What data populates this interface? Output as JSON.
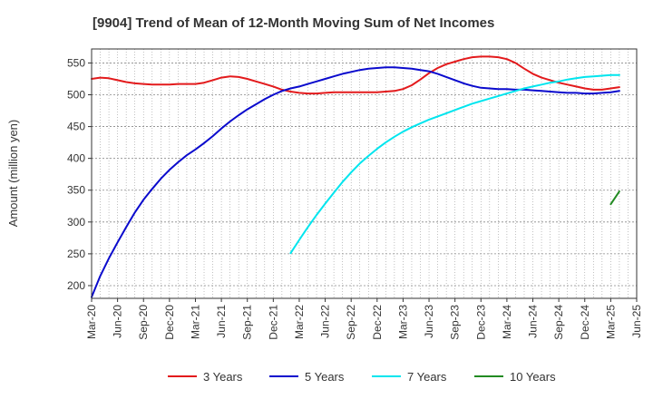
{
  "chart_data": {
    "type": "line",
    "title": "[9904]  Trend of Mean of 12-Month Moving Sum of Net Incomes",
    "ylabel": "Amount (million yen)",
    "xlabel": "",
    "ylim": [
      180,
      572
    ],
    "yticks": [
      200,
      250,
      300,
      350,
      400,
      450,
      500,
      550
    ],
    "xlim": [
      "2020-03",
      "2025-06"
    ],
    "xtick_labels": [
      "Mar-20",
      "Jun-20",
      "Sep-20",
      "Dec-20",
      "Mar-21",
      "Jun-21",
      "Sep-21",
      "Dec-21",
      "Mar-22",
      "Jun-22",
      "Sep-22",
      "Dec-22",
      "Mar-23",
      "Jun-23",
      "Sep-23",
      "Dec-23",
      "Mar-24",
      "Jun-24",
      "Sep-24",
      "Dec-24",
      "Mar-25",
      "Jun-25"
    ],
    "grid": true,
    "legend_position": "bottom",
    "series": [
      {
        "name": "3 Years",
        "color": "#e31a1c",
        "points": [
          [
            "2020-03",
            525
          ],
          [
            "2020-04",
            527
          ],
          [
            "2020-05",
            526
          ],
          [
            "2020-06",
            523
          ],
          [
            "2020-07",
            520
          ],
          [
            "2020-08",
            518
          ],
          [
            "2020-09",
            517
          ],
          [
            "2020-10",
            516
          ],
          [
            "2020-11",
            516
          ],
          [
            "2020-12",
            516
          ],
          [
            "2021-01",
            517
          ],
          [
            "2021-02",
            517
          ],
          [
            "2021-03",
            517
          ],
          [
            "2021-04",
            519
          ],
          [
            "2021-05",
            523
          ],
          [
            "2021-06",
            527
          ],
          [
            "2021-07",
            529
          ],
          [
            "2021-08",
            528
          ],
          [
            "2021-09",
            525
          ],
          [
            "2021-10",
            521
          ],
          [
            "2021-11",
            517
          ],
          [
            "2021-12",
            513
          ],
          [
            "2022-01",
            508
          ],
          [
            "2022-02",
            505
          ],
          [
            "2022-03",
            503
          ],
          [
            "2022-04",
            502
          ],
          [
            "2022-05",
            502
          ],
          [
            "2022-06",
            503
          ],
          [
            "2022-07",
            504
          ],
          [
            "2022-08",
            504
          ],
          [
            "2022-09",
            504
          ],
          [
            "2022-10",
            504
          ],
          [
            "2022-11",
            504
          ],
          [
            "2022-12",
            504
          ],
          [
            "2023-01",
            505
          ],
          [
            "2023-02",
            506
          ],
          [
            "2023-03",
            509
          ],
          [
            "2023-04",
            515
          ],
          [
            "2023-05",
            524
          ],
          [
            "2023-06",
            534
          ],
          [
            "2023-07",
            542
          ],
          [
            "2023-08",
            548
          ],
          [
            "2023-09",
            552
          ],
          [
            "2023-10",
            556
          ],
          [
            "2023-11",
            559
          ],
          [
            "2023-12",
            560
          ],
          [
            "2024-01",
            560
          ],
          [
            "2024-02",
            559
          ],
          [
            "2024-03",
            556
          ],
          [
            "2024-04",
            550
          ],
          [
            "2024-05",
            541
          ],
          [
            "2024-06",
            533
          ],
          [
            "2024-07",
            527
          ],
          [
            "2024-08",
            523
          ],
          [
            "2024-09",
            519
          ],
          [
            "2024-10",
            516
          ],
          [
            "2024-11",
            513
          ],
          [
            "2024-12",
            510
          ],
          [
            "2025-01",
            508
          ],
          [
            "2025-02",
            508
          ],
          [
            "2025-03",
            510
          ],
          [
            "2025-04",
            512
          ]
        ]
      },
      {
        "name": "5 Years",
        "color": "#0a0acd",
        "points": [
          [
            "2020-03",
            182
          ],
          [
            "2020-04",
            215
          ],
          [
            "2020-05",
            243
          ],
          [
            "2020-06",
            268
          ],
          [
            "2020-07",
            292
          ],
          [
            "2020-08",
            315
          ],
          [
            "2020-09",
            335
          ],
          [
            "2020-10",
            352
          ],
          [
            "2020-11",
            368
          ],
          [
            "2020-12",
            382
          ],
          [
            "2021-01",
            394
          ],
          [
            "2021-02",
            405
          ],
          [
            "2021-03",
            414
          ],
          [
            "2021-04",
            424
          ],
          [
            "2021-05",
            435
          ],
          [
            "2021-06",
            447
          ],
          [
            "2021-07",
            458
          ],
          [
            "2021-08",
            468
          ],
          [
            "2021-09",
            477
          ],
          [
            "2021-10",
            485
          ],
          [
            "2021-11",
            493
          ],
          [
            "2021-12",
            500
          ],
          [
            "2022-01",
            506
          ],
          [
            "2022-02",
            510
          ],
          [
            "2022-03",
            513
          ],
          [
            "2022-04",
            517
          ],
          [
            "2022-05",
            521
          ],
          [
            "2022-06",
            525
          ],
          [
            "2022-07",
            529
          ],
          [
            "2022-08",
            533
          ],
          [
            "2022-09",
            536
          ],
          [
            "2022-10",
            539
          ],
          [
            "2022-11",
            541
          ],
          [
            "2022-12",
            542
          ],
          [
            "2023-01",
            543
          ],
          [
            "2023-02",
            543
          ],
          [
            "2023-03",
            542
          ],
          [
            "2023-04",
            541
          ],
          [
            "2023-05",
            539
          ],
          [
            "2023-06",
            537
          ],
          [
            "2023-07",
            533
          ],
          [
            "2023-08",
            528
          ],
          [
            "2023-09",
            523
          ],
          [
            "2023-10",
            518
          ],
          [
            "2023-11",
            514
          ],
          [
            "2023-12",
            511
          ],
          [
            "2024-01",
            510
          ],
          [
            "2024-02",
            509
          ],
          [
            "2024-03",
            509
          ],
          [
            "2024-04",
            508
          ],
          [
            "2024-05",
            508
          ],
          [
            "2024-06",
            507
          ],
          [
            "2024-07",
            506
          ],
          [
            "2024-08",
            505
          ],
          [
            "2024-09",
            504
          ],
          [
            "2024-10",
            503
          ],
          [
            "2024-11",
            503
          ],
          [
            "2024-12",
            502
          ],
          [
            "2025-01",
            502
          ],
          [
            "2025-02",
            503
          ],
          [
            "2025-03",
            504
          ],
          [
            "2025-04",
            506
          ]
        ]
      },
      {
        "name": "7 Years",
        "color": "#00e5ee",
        "points": [
          [
            "2022-02",
            251
          ],
          [
            "2022-03",
            272
          ],
          [
            "2022-04",
            292
          ],
          [
            "2022-05",
            311
          ],
          [
            "2022-06",
            329
          ],
          [
            "2022-07",
            346
          ],
          [
            "2022-08",
            363
          ],
          [
            "2022-09",
            378
          ],
          [
            "2022-10",
            392
          ],
          [
            "2022-11",
            404
          ],
          [
            "2022-12",
            415
          ],
          [
            "2023-01",
            425
          ],
          [
            "2023-02",
            434
          ],
          [
            "2023-03",
            442
          ],
          [
            "2023-04",
            449
          ],
          [
            "2023-05",
            455
          ],
          [
            "2023-06",
            461
          ],
          [
            "2023-07",
            466
          ],
          [
            "2023-08",
            471
          ],
          [
            "2023-09",
            476
          ],
          [
            "2023-10",
            481
          ],
          [
            "2023-11",
            486
          ],
          [
            "2023-12",
            490
          ],
          [
            "2024-01",
            494
          ],
          [
            "2024-02",
            498
          ],
          [
            "2024-03",
            502
          ],
          [
            "2024-04",
            506
          ],
          [
            "2024-05",
            510
          ],
          [
            "2024-06",
            513
          ],
          [
            "2024-07",
            516
          ],
          [
            "2024-08",
            519
          ],
          [
            "2024-09",
            521
          ],
          [
            "2024-10",
            524
          ],
          [
            "2024-11",
            526
          ],
          [
            "2024-12",
            528
          ],
          [
            "2025-01",
            529
          ],
          [
            "2025-02",
            530
          ],
          [
            "2025-03",
            531
          ],
          [
            "2025-04",
            531
          ]
        ]
      },
      {
        "name": "10 Years",
        "color": "#228b22",
        "points": [
          [
            "2025-03",
            328
          ],
          [
            "2025-04",
            348
          ]
        ]
      }
    ]
  }
}
